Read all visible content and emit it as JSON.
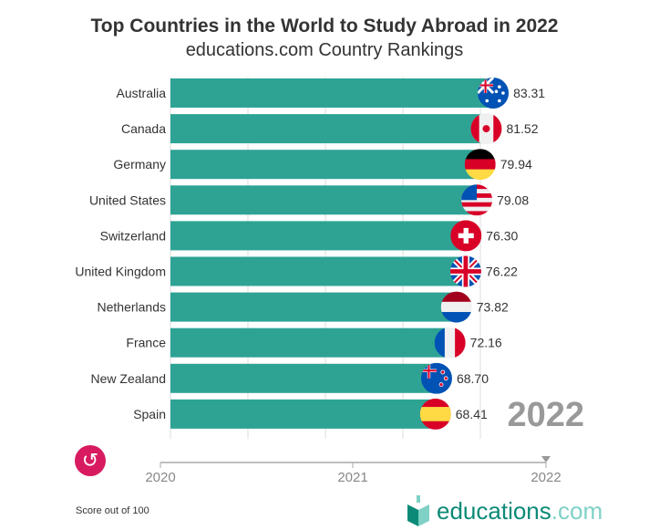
{
  "chart_data": {
    "type": "bar",
    "orientation": "horizontal",
    "title": "Top Countries in the World to Study Abroad in 2022",
    "subtitle": "educations.com Country Rankings",
    "categories": [
      "Australia",
      "Canada",
      "Germany",
      "United States",
      "Switzerland",
      "United Kingdom",
      "Netherlands",
      "France",
      "New Zealand",
      "Spain"
    ],
    "values": [
      83.31,
      81.52,
      79.94,
      79.08,
      76.3,
      76.22,
      73.82,
      72.16,
      68.7,
      68.41
    ],
    "value_labels": [
      "83.31",
      "81.52",
      "79.94",
      "79.08",
      "76.30",
      "76.22",
      "73.82",
      "72.16",
      "68.70",
      "68.41"
    ],
    "flags": [
      "au",
      "ca",
      "de",
      "us",
      "ch",
      "gb",
      "nl",
      "fr",
      "nz",
      "es"
    ],
    "xlim": [
      0,
      100
    ],
    "grid_step": 20,
    "grid": true,
    "current_year": "2022",
    "bar_color": "#2ea394",
    "timeline": {
      "ticks": [
        "2020",
        "2021",
        "2022"
      ],
      "current": "2022"
    },
    "footnote": "Score out of 100"
  },
  "replay_icon": "replay-icon",
  "logo": {
    "name": "educations",
    "tld": ".com"
  },
  "colors": {
    "bar": "#2ea394",
    "replay": "#d81b60",
    "brand": "#0b8a77"
  }
}
